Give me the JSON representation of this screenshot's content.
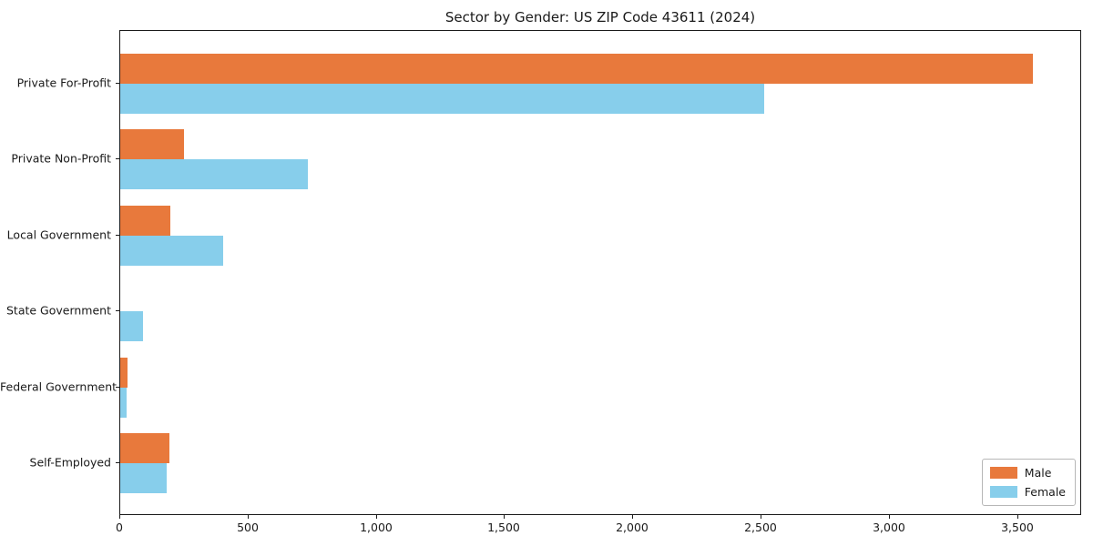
{
  "chart_data": {
    "type": "bar",
    "orientation": "horizontal",
    "title": "Sector by Gender: US ZIP Code 43611 (2024)",
    "categories": [
      "Private For-Profit",
      "Private Non-Profit",
      "Local Government",
      "State Government",
      "Federal Government",
      "Self-Employed"
    ],
    "series": [
      {
        "name": "Male",
        "color": "#e8793c",
        "values": [
          3560,
          250,
          195,
          0,
          30,
          190
        ]
      },
      {
        "name": "Female",
        "color": "#87ceeb",
        "values": [
          2510,
          730,
          400,
          90,
          25,
          180
        ]
      }
    ],
    "xlim": [
      0,
      3750
    ],
    "x_tick_values": [
      0,
      500,
      1000,
      1500,
      2000,
      2500,
      3000,
      3500
    ],
    "x_tick_labels": [
      "0",
      "500",
      "1,000",
      "1,500",
      "2,000",
      "2,500",
      "3,000",
      "3,500"
    ],
    "grid": false,
    "legend_position": "lower right"
  }
}
